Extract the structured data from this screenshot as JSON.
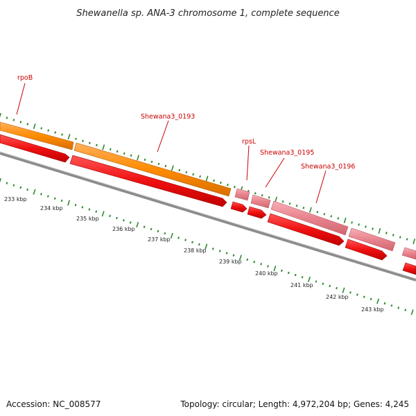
{
  "title": "Shewanella sp. ANA-3 chromosome 1, complete sequence",
  "footer": {
    "accession": "Accession: NC_008577",
    "summary": "Topology: circular; Length: 4,972,204 bp; Genes: 4,245"
  },
  "gene_labels": [
    "rpoB",
    "Shewana3_0193",
    "rpsL",
    "Shewana3_0195",
    "Shewana3_0196"
  ],
  "kbp_labels": [
    "233 kbp",
    "234 kbp",
    "235 kbp",
    "236 kbp",
    "237 kbp",
    "238 kbp",
    "239 kbp",
    "240 kbp",
    "241 kbp",
    "242 kbp",
    "243 kbp"
  ],
  "colors": {
    "cds": "#f21818",
    "gene": "#ff8c00",
    "rna_like": "#e87d87",
    "backbone": "#8a8a8a",
    "ticks": "#2e8b2e",
    "label": "#cc0000"
  }
}
